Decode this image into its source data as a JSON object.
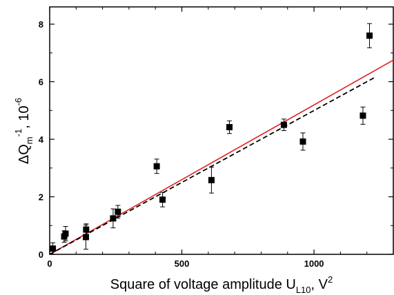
{
  "chart_data": {
    "type": "scatter",
    "xlabel": "Square of voltage amplitude U",
    "xlabel_subscript": "L10",
    "xlabel_suffix": ", V",
    "xlabel_superscript": "2",
    "ylabel_main": "ΔQ",
    "ylabel_subscript": "m",
    "ylabel_superscript": "-1",
    "ylabel_suffix": ", 10",
    "ylabel_suffix_superscript": "-6",
    "xlim": [
      0,
      1300
    ],
    "ylim": [
      0,
      8.6
    ],
    "x_ticks": [
      0,
      500,
      1000
    ],
    "x_tick_labels": [
      "0",
      "500",
      "1000"
    ],
    "y_ticks": [
      0,
      2,
      4,
      6,
      8
    ],
    "y_tick_labels": [
      "0",
      "2",
      "4",
      "6",
      "8"
    ],
    "grid": false,
    "points": [
      {
        "x": 12,
        "y": 0.2,
        "err": 0.2
      },
      {
        "x": 55,
        "y": 0.62,
        "err": 0.2
      },
      {
        "x": 60,
        "y": 0.72,
        "err": 0.25
      },
      {
        "x": 137,
        "y": 0.6,
        "err": 0.42
      },
      {
        "x": 138,
        "y": 0.86,
        "err": 0.2
      },
      {
        "x": 240,
        "y": 1.25,
        "err": 0.33
      },
      {
        "x": 258,
        "y": 1.48,
        "err": 0.22
      },
      {
        "x": 405,
        "y": 3.06,
        "err": 0.25
      },
      {
        "x": 427,
        "y": 1.9,
        "err": 0.25
      },
      {
        "x": 612,
        "y": 2.58,
        "err": 0.45
      },
      {
        "x": 680,
        "y": 4.42,
        "err": 0.22
      },
      {
        "x": 886,
        "y": 4.5,
        "err": 0.2
      },
      {
        "x": 958,
        "y": 3.92,
        "err": 0.3
      },
      {
        "x": 1185,
        "y": 4.82,
        "err": 0.3
      },
      {
        "x": 1210,
        "y": 7.6,
        "err": 0.42
      }
    ],
    "lines": [
      {
        "style": "solid",
        "color": "#e02020",
        "x": [
          0,
          1300
        ],
        "y": [
          0,
          6.75
        ]
      },
      {
        "style": "dashed",
        "color": "#000000",
        "x": [
          0,
          1230
        ],
        "y": [
          0,
          6.15
        ]
      }
    ]
  }
}
